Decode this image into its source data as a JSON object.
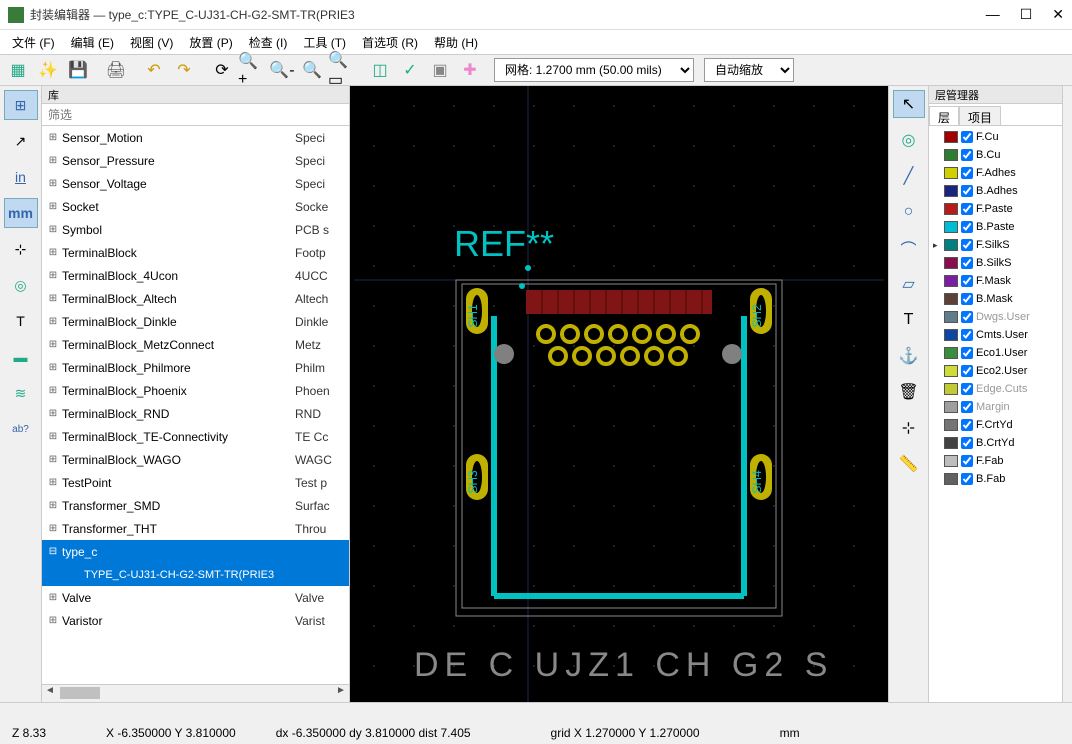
{
  "window": {
    "title": "封装编辑器 — type_c:TYPE_C-UJ31-CH-G2-SMT-TR(PRIE3"
  },
  "menu": {
    "file": "文件 (F)",
    "edit": "编辑 (E)",
    "view": "视图 (V)",
    "place": "放置 (P)",
    "inspect": "检查 (I)",
    "tools": "工具 (T)",
    "prefs": "首选项 (R)",
    "help": "帮助 (H)"
  },
  "toolbar": {
    "grid": "网格: 1.2700 mm (50.00 mils)",
    "zoom": "自动缩放"
  },
  "lib": {
    "header": "库",
    "filter_placeholder": "筛选",
    "items": [
      {
        "name": "Sensor_Motion",
        "desc": "Speci"
      },
      {
        "name": "Sensor_Pressure",
        "desc": "Speci"
      },
      {
        "name": "Sensor_Voltage",
        "desc": "Speci"
      },
      {
        "name": "Socket",
        "desc": "Socke"
      },
      {
        "name": "Symbol",
        "desc": "PCB s"
      },
      {
        "name": "TerminalBlock",
        "desc": "Footp"
      },
      {
        "name": "TerminalBlock_4Ucon",
        "desc": "4UCC"
      },
      {
        "name": "TerminalBlock_Altech",
        "desc": "Altech"
      },
      {
        "name": "TerminalBlock_Dinkle",
        "desc": "Dinkle"
      },
      {
        "name": "TerminalBlock_MetzConnect",
        "desc": "Metz"
      },
      {
        "name": "TerminalBlock_Philmore",
        "desc": "Philm"
      },
      {
        "name": "TerminalBlock_Phoenix",
        "desc": "Phoen"
      },
      {
        "name": "TerminalBlock_RND",
        "desc": "RND "
      },
      {
        "name": "TerminalBlock_TE-Connectivity",
        "desc": "TE Cc"
      },
      {
        "name": "TerminalBlock_WAGO",
        "desc": "WAGC"
      },
      {
        "name": "TestPoint",
        "desc": "Test p"
      },
      {
        "name": "Transformer_SMD",
        "desc": "Surfac"
      },
      {
        "name": "Transformer_THT",
        "desc": "Throu"
      }
    ],
    "selected": {
      "name": "type_c",
      "child": "TYPE_C-UJ31-CH-G2-SMT-TR(PRIE3"
    },
    "after": [
      {
        "name": "Valve",
        "desc": "Valve"
      },
      {
        "name": "Varistor",
        "desc": "Varist"
      }
    ]
  },
  "layers": {
    "header": "层管理器",
    "tab_layers": "层",
    "tab_items": "项目",
    "list": [
      {
        "color": "#a00000",
        "name": "F.Cu",
        "active": false
      },
      {
        "color": "#2e7d32",
        "name": "B.Cu",
        "active": false
      },
      {
        "color": "#d0d000",
        "name": "F.Adhes",
        "active": false
      },
      {
        "color": "#1a237e",
        "name": "B.Adhes",
        "active": false
      },
      {
        "color": "#b71c1c",
        "name": "F.Paste",
        "active": false
      },
      {
        "color": "#00bcd4",
        "name": "B.Paste",
        "active": false
      },
      {
        "color": "#008080",
        "name": "F.SilkS",
        "active": true
      },
      {
        "color": "#880e4f",
        "name": "B.SilkS",
        "active": false
      },
      {
        "color": "#7b1fa2",
        "name": "F.Mask",
        "active": false
      },
      {
        "color": "#5d4037",
        "name": "B.Mask",
        "active": false
      },
      {
        "color": "#607d8b",
        "name": "Dwgs.User",
        "active": false,
        "dim": true
      },
      {
        "color": "#0d47a1",
        "name": "Cmts.User",
        "active": false
      },
      {
        "color": "#388e3c",
        "name": "Eco1.User",
        "active": false
      },
      {
        "color": "#cddc39",
        "name": "Eco2.User",
        "active": false
      },
      {
        "color": "#c0ca33",
        "name": "Edge.Cuts",
        "active": false,
        "dim": true
      },
      {
        "color": "#9e9e9e",
        "name": "Margin",
        "active": false,
        "dim": true
      },
      {
        "color": "#757575",
        "name": "F.CrtYd",
        "active": false
      },
      {
        "color": "#424242",
        "name": "B.CrtYd",
        "active": false
      },
      {
        "color": "#bdbdbd",
        "name": "F.Fab",
        "active": false
      },
      {
        "color": "#616161",
        "name": "B.Fab",
        "active": false
      }
    ]
  },
  "canvas": {
    "ref_label": "REF**",
    "pads": [
      "SH1",
      "SH2",
      "SH3",
      "SH4"
    ],
    "colors": {
      "bg": "#000000",
      "silk": "#00c2c2",
      "pad": "#c0b000",
      "smd": "#801515",
      "dot": "#808080"
    }
  },
  "status": {
    "z": "Z 8.33",
    "xy": "X -6.350000  Y 3.810000",
    "dxy": "dx -6.350000  dy 3.810000  dist 7.405",
    "grid": "grid X 1.270000  Y 1.270000",
    "unit": "mm"
  }
}
